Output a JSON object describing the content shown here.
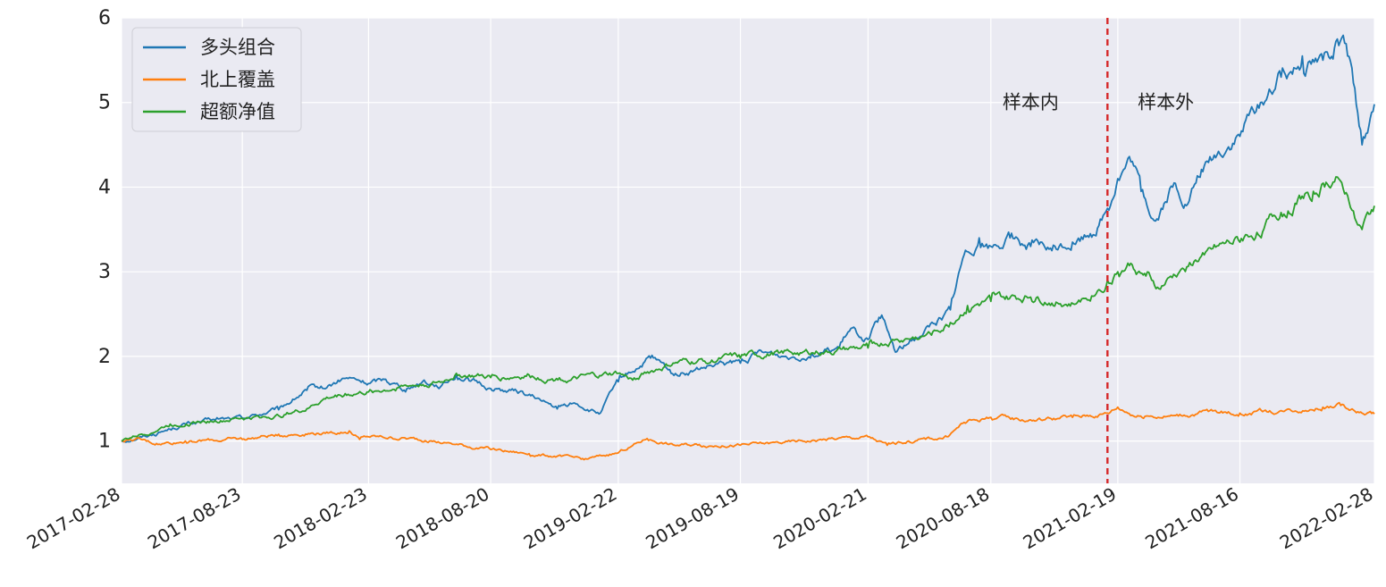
{
  "chart_data": {
    "type": "line",
    "x_ticks": [
      "2017-02-28",
      "2017-08-23",
      "2018-02-23",
      "2018-08-20",
      "2019-02-22",
      "2019-08-19",
      "2020-02-21",
      "2020-08-18",
      "2021-02-19",
      "2021-08-16",
      "2022-02-28"
    ],
    "ylim": [
      0.5,
      6
    ],
    "y_ticks": [
      1,
      2,
      3,
      4,
      5,
      6
    ],
    "grid": true,
    "legend_position": "top-left",
    "background": "#eaeaf2",
    "split_marker": {
      "x": "2021-02-04",
      "color": "#d62728",
      "style": "dashed"
    },
    "annotations": [
      {
        "text": "样本内",
        "x": "2020-10-15",
        "y": 5.0
      },
      {
        "text": "样本外",
        "x": "2021-04-30",
        "y": 5.0
      }
    ],
    "series": [
      {
        "name": "多头组合",
        "color": "#1f77b4",
        "points": [
          [
            "2017-02-28",
            1.0
          ],
          [
            "2017-04-15",
            1.08
          ],
          [
            "2017-06-01",
            1.2
          ],
          [
            "2017-07-15",
            1.25
          ],
          [
            "2017-08-23",
            1.27
          ],
          [
            "2017-10-15",
            1.37
          ],
          [
            "2017-11-25",
            1.6
          ],
          [
            "2017-12-20",
            1.62
          ],
          [
            "2018-01-20",
            1.74
          ],
          [
            "2018-02-23",
            1.68
          ],
          [
            "2018-03-20",
            1.73
          ],
          [
            "2018-04-20",
            1.62
          ],
          [
            "2018-05-15",
            1.72
          ],
          [
            "2018-06-10",
            1.66
          ],
          [
            "2018-07-01",
            1.78
          ],
          [
            "2018-08-20",
            1.62
          ],
          [
            "2018-10-01",
            1.58
          ],
          [
            "2018-11-01",
            1.48
          ],
          [
            "2018-11-25",
            1.38
          ],
          [
            "2018-12-20",
            1.45
          ],
          [
            "2019-01-25",
            1.32
          ],
          [
            "2019-02-22",
            1.7
          ],
          [
            "2019-03-20",
            1.85
          ],
          [
            "2019-04-10",
            1.98
          ],
          [
            "2019-05-10",
            1.8
          ],
          [
            "2019-06-10",
            1.82
          ],
          [
            "2019-07-10",
            1.88
          ],
          [
            "2019-08-19",
            1.92
          ],
          [
            "2019-09-20",
            2.05
          ],
          [
            "2019-10-20",
            2.0
          ],
          [
            "2019-12-01",
            2.04
          ],
          [
            "2020-01-10",
            2.1
          ],
          [
            "2020-01-25",
            2.3
          ],
          [
            "2020-02-21",
            2.2
          ],
          [
            "2020-03-10",
            2.45
          ],
          [
            "2020-04-01",
            2.05
          ],
          [
            "2020-04-20",
            2.15
          ],
          [
            "2020-05-20",
            2.35
          ],
          [
            "2020-06-20",
            2.55
          ],
          [
            "2020-07-10",
            3.2
          ],
          [
            "2020-08-01",
            3.4
          ],
          [
            "2020-08-18",
            3.3
          ],
          [
            "2020-09-15",
            3.4
          ],
          [
            "2020-10-15",
            3.3
          ],
          [
            "2020-11-15",
            3.25
          ],
          [
            "2020-12-15",
            3.35
          ],
          [
            "2021-01-10",
            3.45
          ],
          [
            "2021-02-04",
            3.75
          ],
          [
            "2021-02-19",
            4.1
          ],
          [
            "2021-03-10",
            4.3
          ],
          [
            "2021-03-25",
            3.95
          ],
          [
            "2021-04-15",
            3.6
          ],
          [
            "2021-05-10",
            4.0
          ],
          [
            "2021-06-01",
            3.8
          ],
          [
            "2021-06-25",
            4.25
          ],
          [
            "2021-08-16",
            4.6
          ],
          [
            "2021-09-15",
            5.0
          ],
          [
            "2021-10-15",
            5.3
          ],
          [
            "2021-11-15",
            5.55
          ],
          [
            "2021-12-15",
            5.5
          ],
          [
            "2022-01-05",
            5.75
          ],
          [
            "2022-01-20",
            5.55
          ],
          [
            "2022-02-10",
            4.5
          ],
          [
            "2022-02-28",
            4.98
          ]
        ]
      },
      {
        "name": "北上覆盖",
        "color": "#ff7f0e",
        "points": [
          [
            "2017-02-28",
            1.0
          ],
          [
            "2017-03-20",
            1.02
          ],
          [
            "2017-04-20",
            0.97
          ],
          [
            "2017-06-01",
            1.0
          ],
          [
            "2017-08-23",
            1.02
          ],
          [
            "2017-10-15",
            1.08
          ],
          [
            "2017-12-20",
            1.1
          ],
          [
            "2018-01-26",
            1.12
          ],
          [
            "2018-02-10",
            1.02
          ],
          [
            "2018-02-23",
            1.05
          ],
          [
            "2018-04-15",
            1.04
          ],
          [
            "2018-06-15",
            0.98
          ],
          [
            "2018-08-20",
            0.9
          ],
          [
            "2018-10-15",
            0.85
          ],
          [
            "2018-12-01",
            0.82
          ],
          [
            "2019-01-03",
            0.78
          ],
          [
            "2019-02-22",
            0.86
          ],
          [
            "2019-04-05",
            1.03
          ],
          [
            "2019-05-15",
            0.95
          ],
          [
            "2019-06-20",
            0.96
          ],
          [
            "2019-08-19",
            0.95
          ],
          [
            "2019-10-20",
            0.98
          ],
          [
            "2019-12-20",
            1.02
          ],
          [
            "2020-02-21",
            1.05
          ],
          [
            "2020-03-20",
            0.95
          ],
          [
            "2020-04-20",
            1.0
          ],
          [
            "2020-06-15",
            1.05
          ],
          [
            "2020-07-10",
            1.22
          ],
          [
            "2020-08-18",
            1.28
          ],
          [
            "2020-10-15",
            1.25
          ],
          [
            "2020-12-15",
            1.28
          ],
          [
            "2021-02-04",
            1.33
          ],
          [
            "2021-02-19",
            1.4
          ],
          [
            "2021-03-20",
            1.3
          ],
          [
            "2021-05-10",
            1.3
          ],
          [
            "2021-07-01",
            1.35
          ],
          [
            "2021-08-16",
            1.33
          ],
          [
            "2021-10-15",
            1.36
          ],
          [
            "2021-12-15",
            1.4
          ],
          [
            "2022-01-10",
            1.42
          ],
          [
            "2022-02-10",
            1.33
          ],
          [
            "2022-02-28",
            1.32
          ]
        ]
      },
      {
        "name": "超额净值",
        "color": "#2ca02c",
        "points": [
          [
            "2017-02-28",
            1.0
          ],
          [
            "2017-05-10",
            1.2
          ],
          [
            "2017-08-23",
            1.27
          ],
          [
            "2017-10-15",
            1.3
          ],
          [
            "2017-11-25",
            1.38
          ],
          [
            "2017-12-20",
            1.5
          ],
          [
            "2018-01-20",
            1.56
          ],
          [
            "2018-02-23",
            1.58
          ],
          [
            "2018-04-20",
            1.65
          ],
          [
            "2018-06-10",
            1.7
          ],
          [
            "2018-07-01",
            1.8
          ],
          [
            "2018-08-20",
            1.75
          ],
          [
            "2018-10-15",
            1.78
          ],
          [
            "2018-12-15",
            1.72
          ],
          [
            "2019-02-22",
            1.8
          ],
          [
            "2019-03-15",
            1.72
          ],
          [
            "2019-04-10",
            1.82
          ],
          [
            "2019-05-15",
            1.92
          ],
          [
            "2019-08-19",
            1.98
          ],
          [
            "2019-10-20",
            2.04
          ],
          [
            "2019-12-20",
            2.05
          ],
          [
            "2020-02-21",
            2.1
          ],
          [
            "2020-04-01",
            2.2
          ],
          [
            "2020-05-15",
            2.25
          ],
          [
            "2020-06-20",
            2.4
          ],
          [
            "2020-07-15",
            2.6
          ],
          [
            "2020-08-18",
            2.65
          ],
          [
            "2020-10-15",
            2.7
          ],
          [
            "2020-12-20",
            2.62
          ],
          [
            "2021-02-04",
            2.9
          ],
          [
            "2021-02-19",
            3.0
          ],
          [
            "2021-03-10",
            3.1
          ],
          [
            "2021-04-01",
            2.95
          ],
          [
            "2021-04-20",
            2.8
          ],
          [
            "2021-05-20",
            3.0
          ],
          [
            "2021-06-25",
            3.2
          ],
          [
            "2021-08-16",
            3.35
          ],
          [
            "2021-10-15",
            3.7
          ],
          [
            "2021-12-01",
            3.95
          ],
          [
            "2022-01-05",
            4.12
          ],
          [
            "2022-01-20",
            3.9
          ],
          [
            "2022-02-10",
            3.5
          ],
          [
            "2022-02-28",
            3.78
          ]
        ]
      }
    ]
  }
}
